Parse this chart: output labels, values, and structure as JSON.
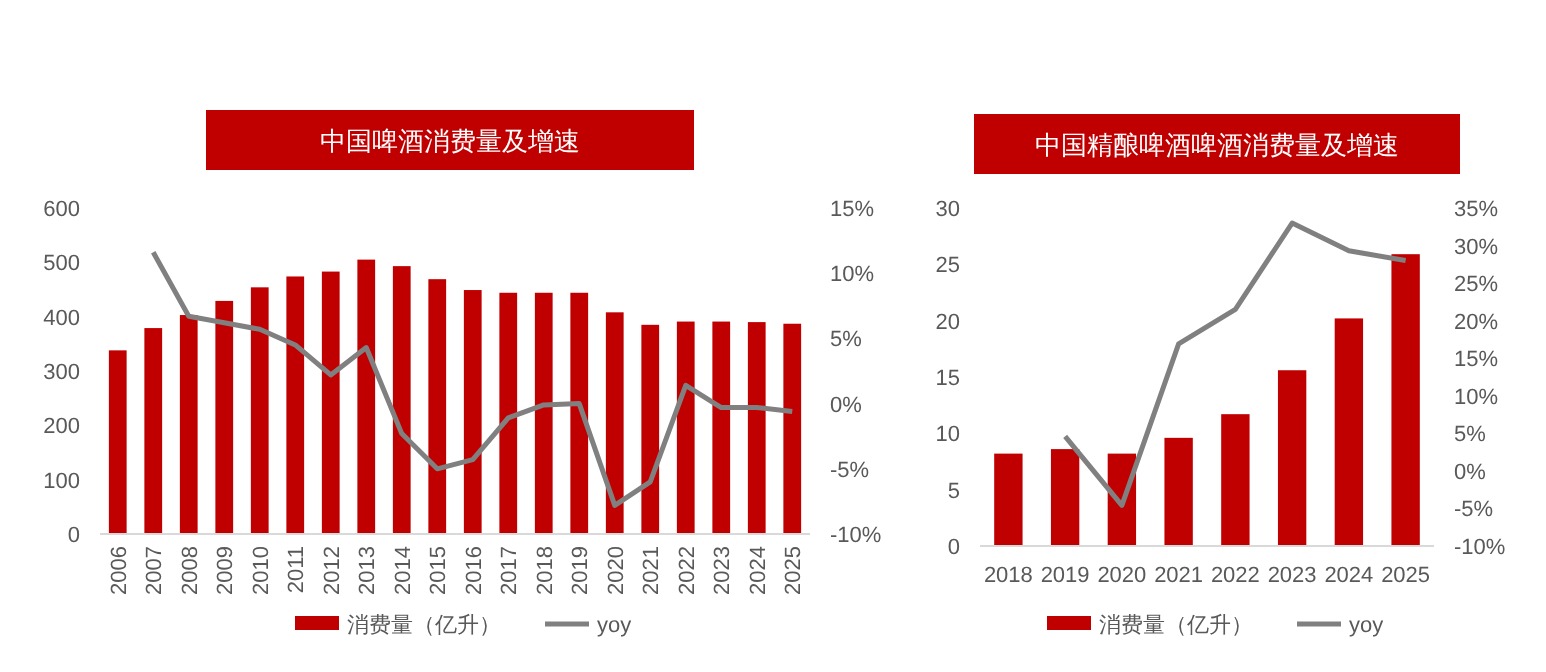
{
  "chart_data": [
    {
      "type": "bar",
      "title": "中国啤酒消费量及增速",
      "categories": [
        "2006",
        "2007",
        "2008",
        "2009",
        "2010",
        "2011",
        "2012",
        "2013",
        "2014",
        "2015",
        "2016",
        "2017",
        "2018",
        "2019",
        "2020",
        "2021",
        "2022",
        "2023",
        "2024",
        "2025"
      ],
      "series": [
        {
          "name": "消费量（亿升）",
          "color": "#c00000",
          "values": [
            338,
            379,
            403,
            429,
            454,
            474,
            483,
            505,
            493,
            469,
            449,
            444,
            444,
            444,
            408,
            385,
            391,
            391,
            390,
            387
          ]
        },
        {
          "name": "yoy",
          "type": "line",
          "axis": "y2",
          "color": "#808080",
          "values": [
            null,
            11.6,
            6.7,
            6.2,
            5.7,
            4.5,
            2.2,
            4.3,
            -2.3,
            -5.0,
            -4.3,
            -1.1,
            -0.1,
            0,
            -7.8,
            -6.0,
            1.4,
            -0.3,
            -0.3,
            -0.6
          ]
        }
      ],
      "ylim": [
        0,
        600
      ],
      "yticks": [
        0,
        100,
        200,
        300,
        400,
        500,
        600
      ],
      "y2lim": [
        -10,
        15
      ],
      "y2ticks": [
        {
          "value": -10,
          "label": "-10%"
        },
        {
          "value": -5,
          "label": "-5%"
        },
        {
          "value": 0,
          "label": "0%"
        },
        {
          "value": 5,
          "label": "5%"
        },
        {
          "value": 10,
          "label": "10%"
        },
        {
          "value": 15,
          "label": "15%"
        }
      ],
      "legend": "bottom"
    },
    {
      "type": "bar",
      "title": "中国精酿啤酒啤酒消费量及增速",
      "categories": [
        "2018",
        "2019",
        "2020",
        "2021",
        "2022",
        "2023",
        "2024",
        "2025"
      ],
      "series": [
        {
          "name": "消费量（亿升）",
          "color": "#c00000",
          "values": [
            8.2,
            8.6,
            8.2,
            9.6,
            11.7,
            15.6,
            20.2,
            25.9
          ]
        },
        {
          "name": "yoy",
          "type": "line",
          "axis": "y2",
          "color": "#808080",
          "values": [
            null,
            4.6,
            -4.6,
            16.9,
            21.5,
            33.0,
            29.3,
            28.0
          ]
        }
      ],
      "ylim": [
        0,
        30
      ],
      "yticks": [
        0,
        5,
        10,
        15,
        20,
        25,
        30
      ],
      "y2lim": [
        -10,
        35
      ],
      "y2ticks": [
        {
          "value": -10,
          "label": "-10%"
        },
        {
          "value": -5,
          "label": "-5%"
        },
        {
          "value": 0,
          "label": "0%"
        },
        {
          "value": 5,
          "label": "5%"
        },
        {
          "value": 10,
          "label": "10%"
        },
        {
          "value": 15,
          "label": "15%"
        },
        {
          "value": 20,
          "label": "20%"
        },
        {
          "value": 25,
          "label": "25%"
        },
        {
          "value": 30,
          "label": "30%"
        },
        {
          "value": 35,
          "label": "35%"
        }
      ],
      "legend": "bottom"
    }
  ]
}
